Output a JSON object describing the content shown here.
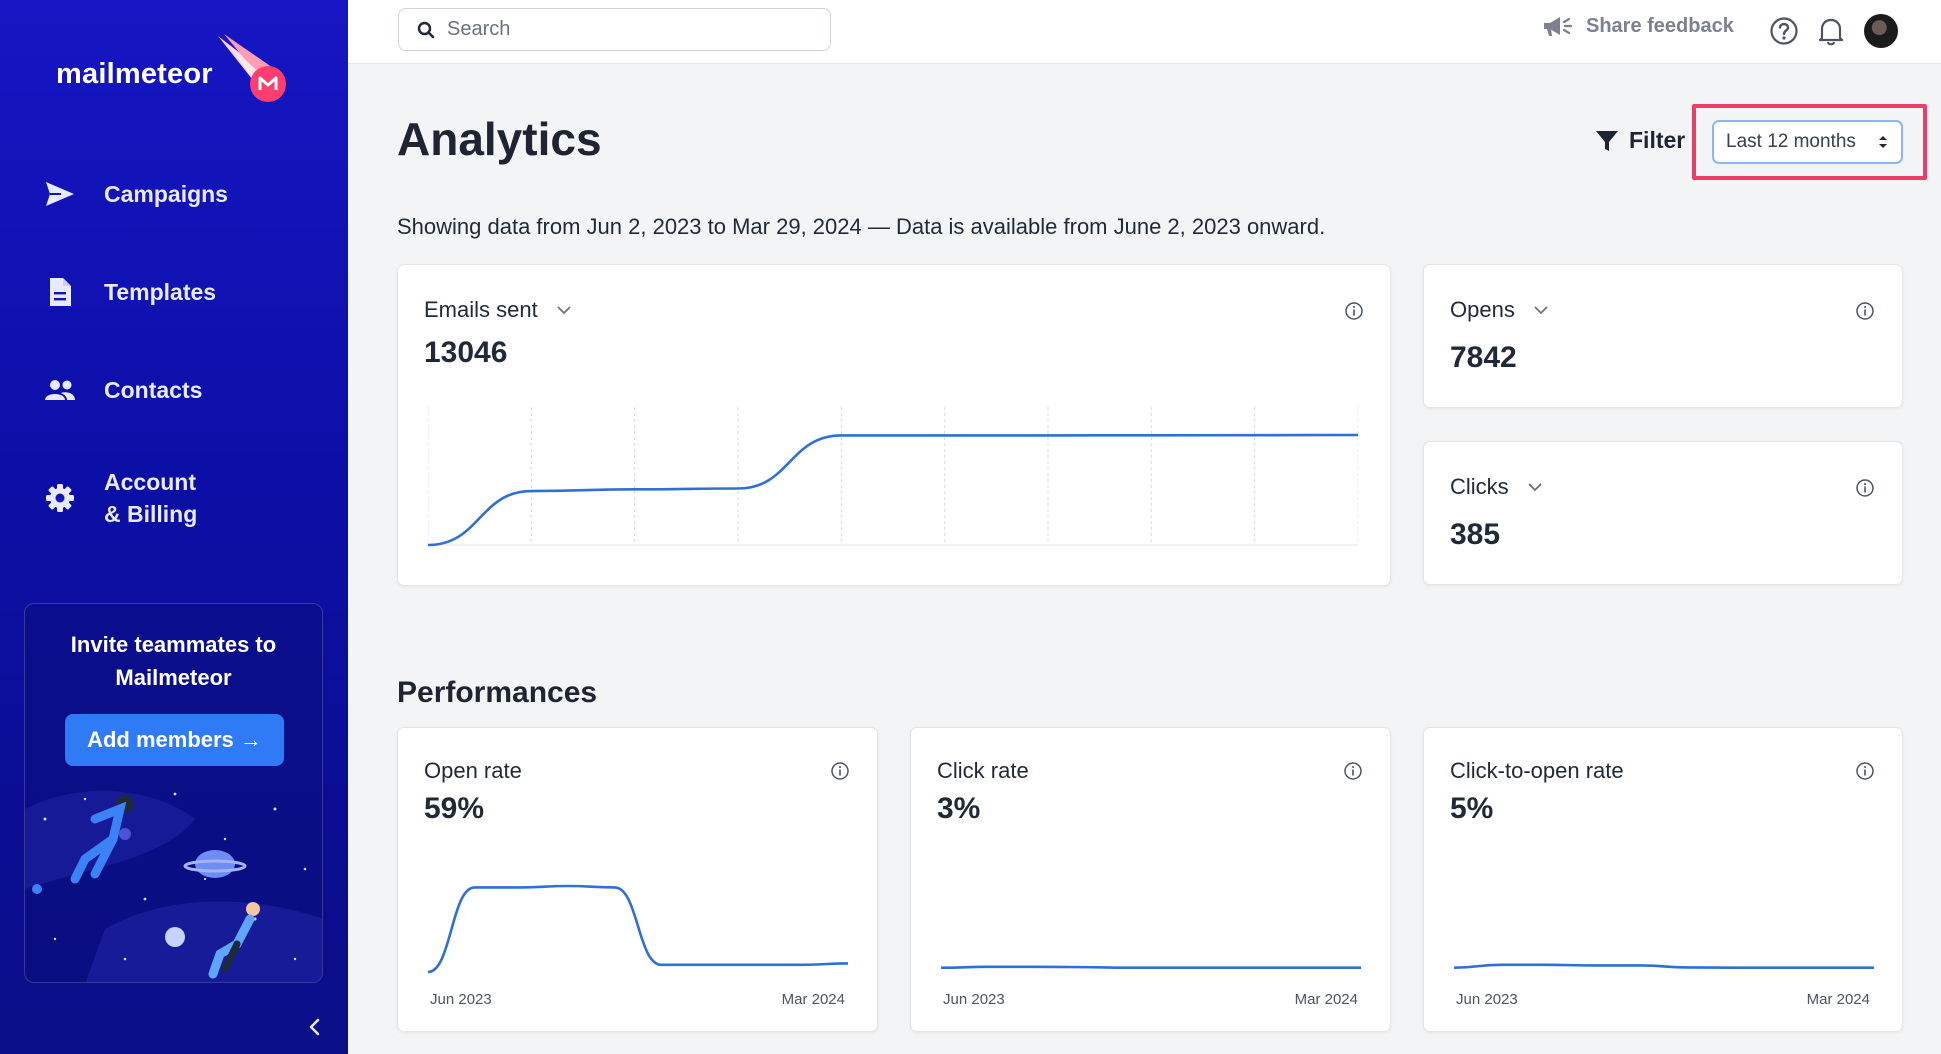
{
  "app": {
    "name": "mailmeteor"
  },
  "sidebar": {
    "items": [
      {
        "label": "Campaigns",
        "icon": "send-icon"
      },
      {
        "label": "Templates",
        "icon": "document-icon"
      },
      {
        "label": "Contacts",
        "icon": "people-icon"
      },
      {
        "label": "Account & Billing",
        "line1": "Account",
        "line2": "& Billing",
        "icon": "gear-icon"
      }
    ],
    "invite": {
      "title": "Invite teammates to Mailmeteor",
      "button": "Add members →"
    }
  },
  "topbar": {
    "search_placeholder": "Search",
    "feedback_label": "Share feedback"
  },
  "page": {
    "title": "Analytics",
    "filter_label": "Filter",
    "range_selected": "Last 12 months",
    "subtitle": "Showing data from Jun 2, 2023 to Mar 29, 2024 — Data is available from June 2, 2023 onward."
  },
  "metrics": {
    "emails_sent": {
      "label": "Emails sent",
      "value": "13046"
    },
    "opens": {
      "label": "Opens",
      "value": "7842"
    },
    "clicks": {
      "label": "Clicks",
      "value": "385"
    }
  },
  "performances": {
    "title": "Performances",
    "cards": [
      {
        "label": "Open rate",
        "value": "59%",
        "start": "Jun 2023",
        "end": "Mar 2024"
      },
      {
        "label": "Click rate",
        "value": "3%",
        "start": "Jun 2023",
        "end": "Mar 2024"
      },
      {
        "label": "Click-to-open rate",
        "value": "5%",
        "start": "Jun 2023",
        "end": "Mar 2024"
      }
    ]
  },
  "chart_data": [
    {
      "type": "line",
      "name": "emails-sent-cumulative",
      "x": [
        0,
        1,
        2,
        3,
        4,
        5,
        6,
        7,
        8,
        9
      ],
      "values": [
        0,
        6400,
        6600,
        6700,
        13000,
        13000,
        13000,
        13010,
        13020,
        13046
      ],
      "ylim": [
        0,
        13046
      ],
      "grid": true
    },
    {
      "type": "line",
      "name": "open-rate",
      "x": [
        0,
        1,
        2,
        3,
        4,
        5,
        6,
        7,
        8,
        9
      ],
      "values": [
        0,
        59,
        59,
        60,
        59,
        5,
        5,
        5,
        5,
        6
      ],
      "ylim": [
        0,
        60
      ],
      "xlabels": [
        "Jun 2023",
        "Mar 2024"
      ]
    },
    {
      "type": "line",
      "name": "click-rate",
      "x": [
        0,
        1,
        2,
        3,
        4,
        5,
        6,
        7,
        8,
        9
      ],
      "values": [
        3,
        3.6,
        3.6,
        3.4,
        3,
        3,
        3,
        3,
        3,
        3
      ],
      "ylim": [
        0,
        60
      ],
      "xlabels": [
        "Jun 2023",
        "Mar 2024"
      ]
    },
    {
      "type": "line",
      "name": "click-to-open-rate",
      "x": [
        0,
        1,
        2,
        3,
        4,
        5,
        6,
        7,
        8,
        9
      ],
      "values": [
        3,
        5,
        5,
        4.6,
        4.6,
        3.2,
        3,
        3,
        3,
        3
      ],
      "ylim": [
        0,
        60
      ],
      "xlabels": [
        "Jun 2023",
        "Mar 2024"
      ]
    }
  ],
  "colors": {
    "sidebar": "#0f12b0",
    "accent": "#2f6fd6",
    "highlight": "#ea3e6a",
    "button": "#2f7bf5"
  }
}
